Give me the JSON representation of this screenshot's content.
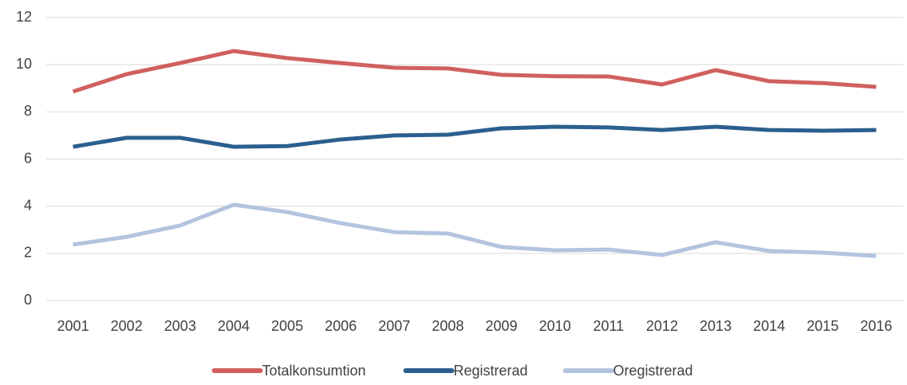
{
  "chart_data": {
    "type": "line",
    "categories": [
      "2001",
      "2002",
      "2003",
      "2004",
      "2005",
      "2006",
      "2007",
      "2008",
      "2009",
      "2010",
      "2011",
      "2012",
      "2013",
      "2014",
      "2015",
      "2016"
    ],
    "series": [
      {
        "name": "Totalkonsumtion",
        "color": "#d0605e",
        "values": [
          8.86,
          9.6,
          10.07,
          10.58,
          10.28,
          10.07,
          9.87,
          9.84,
          9.57,
          9.51,
          9.5,
          9.16,
          9.77,
          9.3,
          9.22,
          9.06
        ]
      },
      {
        "name": "Registrerad",
        "color": "#2b5f8e",
        "values": [
          6.52,
          6.9,
          6.9,
          6.52,
          6.55,
          6.83,
          7.0,
          7.03,
          7.3,
          7.37,
          7.34,
          7.23,
          7.37,
          7.23,
          7.2,
          7.23
        ]
      },
      {
        "name": "Oregistrerad",
        "color": "#b4c4df",
        "values": [
          2.37,
          2.7,
          3.18,
          4.06,
          3.75,
          3.28,
          2.9,
          2.84,
          2.27,
          2.13,
          2.16,
          1.93,
          2.47,
          2.1,
          2.03,
          1.89
        ]
      }
    ],
    "ylim": [
      0,
      12
    ],
    "yticks": [
      0,
      2,
      4,
      6,
      8,
      10,
      12
    ],
    "grid": true,
    "legend": "bottom"
  }
}
